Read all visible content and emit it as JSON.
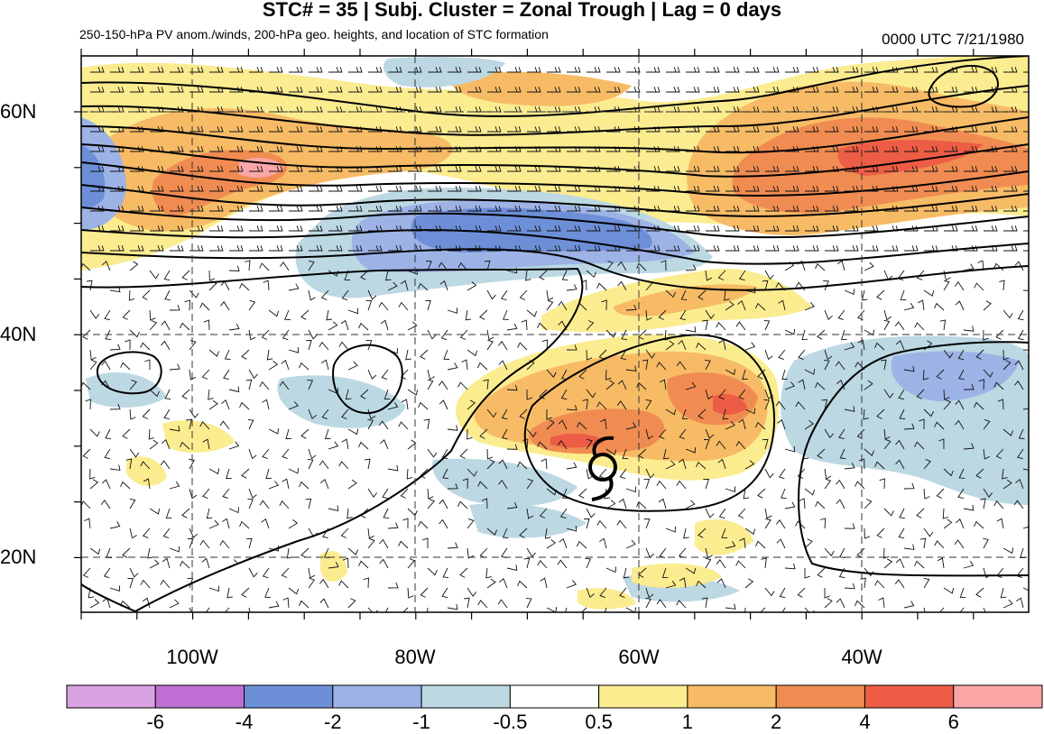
{
  "header": {
    "title": "STC# = 35 | Subj. Cluster = Zonal Trough | Lag = 0 days",
    "subtitle": "250-150-hPa PV anom./winds, 200-hPa geo. heights, and location of STC formation",
    "timestamp": "0000 UTC  7/21/1980"
  },
  "axes": {
    "lat_labels": [
      "60N",
      "40N",
      "20N"
    ],
    "lon_labels": [
      "100W",
      "80W",
      "60W",
      "40W"
    ]
  },
  "colorbar": {
    "labels": [
      "-6",
      "-4",
      "-2",
      "-1",
      "-0.5",
      "0.5",
      "1",
      "2",
      "4",
      "6"
    ],
    "colors": [
      "#d8a2e2",
      "#bf6fd3",
      "#6d8fd8",
      "#9db3e6",
      "#bcd8e3",
      "#ffffff",
      "#fbec90",
      "#f7bb66",
      "#f08c52",
      "#ed5d45",
      "#fba6a6"
    ]
  },
  "map": {
    "stc_symbol": "tropical-cyclone-symbol",
    "palette": {
      "neg_strong": "#6d8fd8",
      "neg_mid": "#9db3e6",
      "neg_weak": "#bcd8e3",
      "pos_weak": "#fbec90",
      "pos_mid": "#f7bb66",
      "pos_strong": "#f08c52",
      "pos_max": "#ed5d45",
      "pos_peak": "#fba6a6"
    }
  }
}
